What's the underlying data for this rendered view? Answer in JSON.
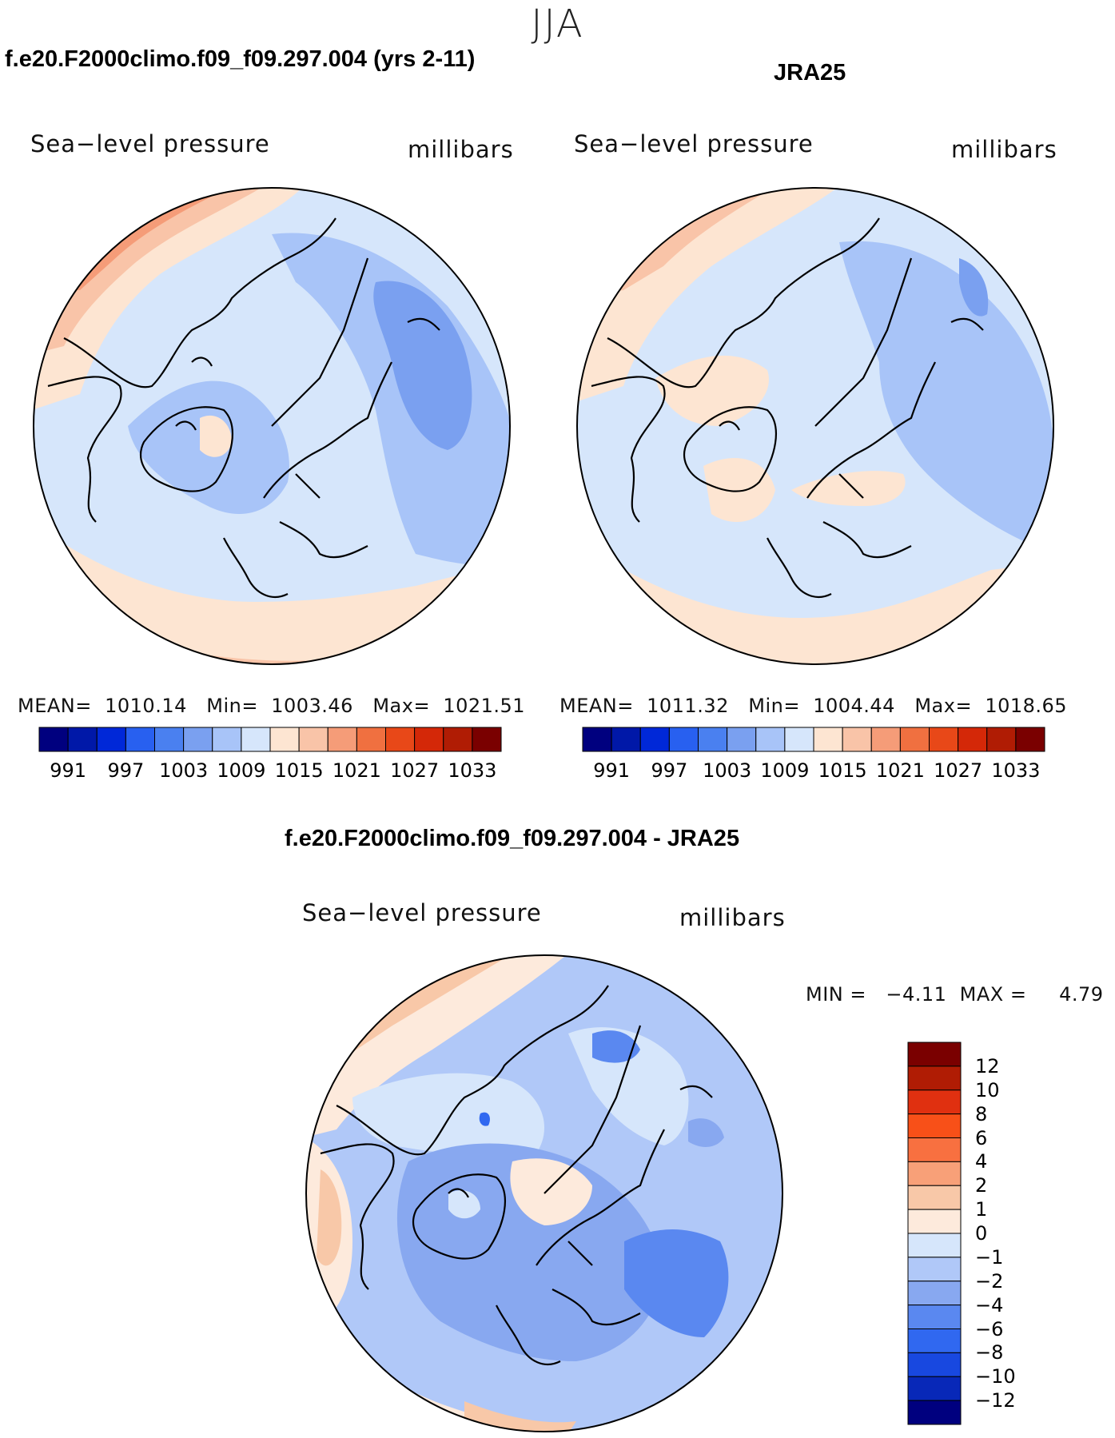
{
  "season": "JJA",
  "panels": [
    {
      "title": "f.e20.F2000climo.f09_f09.297.004 (yrs 2-11)",
      "variable": "Sea−level pressure",
      "units": "millibars",
      "stats": {
        "mean": "1010.14",
        "min": "1003.46",
        "max": "1021.51"
      },
      "stats_text": "MEAN=  1010.14   Min=  1003.46   Max=  1021.51"
    },
    {
      "title": "JRA25",
      "variable": "Sea−level pressure",
      "units": "millibars",
      "stats": {
        "mean": "1011.32",
        "min": "1004.44",
        "max": "1018.65"
      },
      "stats_text": "MEAN=  1011.32   Min=  1004.44   Max=  1018.65"
    },
    {
      "title": "f.e20.F2000climo.f09_f09.297.004 - JRA25",
      "variable": "Sea−level pressure",
      "units": "millibars",
      "stats": {
        "min": "−4.11",
        "max": "4.79"
      },
      "stats_text": "MIN =   −4.11  MAX =     4.79"
    }
  ],
  "colorbar_abs": {
    "colors": [
      "#00007f",
      "#0018a8",
      "#0028d8",
      "#2860f0",
      "#4a80f0",
      "#7aa0f0",
      "#a8c4f8",
      "#d6e6fb",
      "#fde5d2",
      "#f9c4a8",
      "#f59c78",
      "#f07040",
      "#e84818",
      "#d42808",
      "#b01c04",
      "#7a0000"
    ],
    "labels": [
      "991",
      "997",
      "1003",
      "1009",
      "1015",
      "1021",
      "1027",
      "1033"
    ]
  },
  "colorbar_diff": {
    "colors": [
      "#7a0000",
      "#b01c04",
      "#e03010",
      "#f85018",
      "#f87040",
      "#f8a078",
      "#f8c8a8",
      "#fdeadc",
      "#d6e6fb",
      "#b0c8f8",
      "#88a8f0",
      "#5a88f0",
      "#3068f0",
      "#1848e0",
      "#0828b8",
      "#00007f"
    ],
    "labels": [
      "12",
      "10",
      "8",
      "6",
      "4",
      "2",
      "1",
      "0",
      "−1",
      "−2",
      "−4",
      "−6",
      "−8",
      "−10",
      "−12"
    ]
  },
  "legend": {
    "mean_label": "MEAN=",
    "min_label": "Min=",
    "max_label": "Max="
  }
}
